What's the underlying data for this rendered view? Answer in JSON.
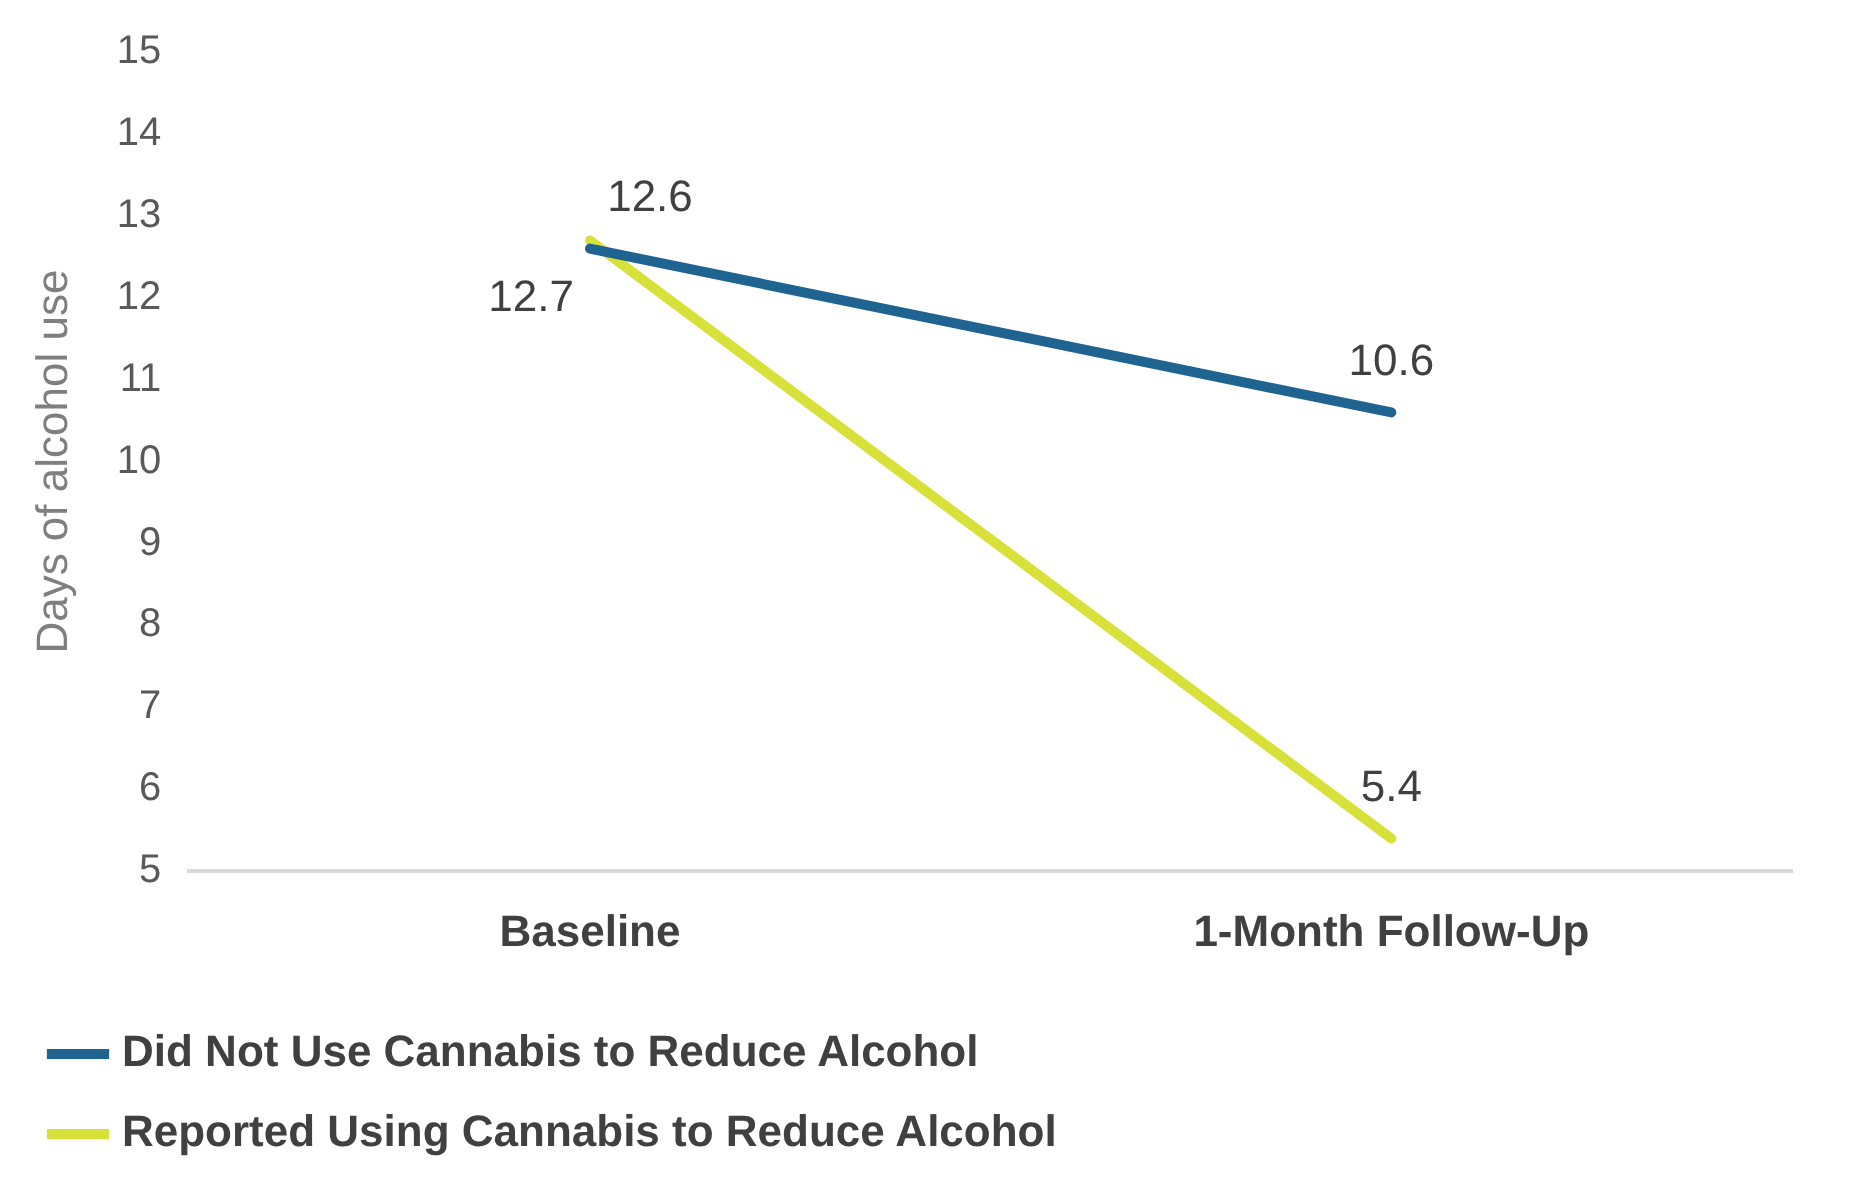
{
  "chart_data": {
    "type": "line",
    "ylabel": "Days of alcohol use",
    "categories": [
      "Baseline",
      "1-Month Follow-Up"
    ],
    "series": [
      {
        "name": "Did Not Use Cannabis to Reduce Alcohol",
        "color": "#1f6391",
        "values": [
          12.6,
          10.6
        ]
      },
      {
        "name": "Reported Using Cannabis to Reduce Alcohol",
        "color": "#d8e03a",
        "values": [
          12.7,
          5.4
        ]
      }
    ],
    "ylim": [
      5,
      15
    ],
    "yticks": [
      5,
      6,
      7,
      8,
      9,
      10,
      11,
      12,
      13,
      14,
      15
    ],
    "grid": false,
    "legend": "bottom",
    "marker": "none",
    "line_style": "solid",
    "data_labels": true
  }
}
